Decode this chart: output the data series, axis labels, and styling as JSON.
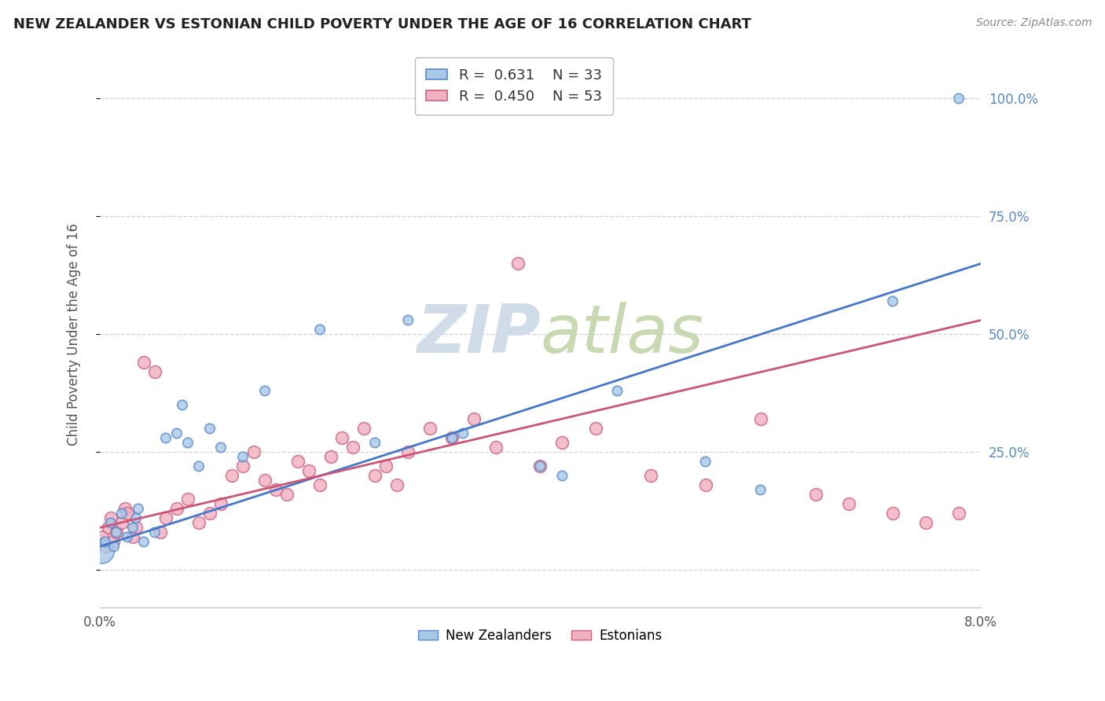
{
  "title": "NEW ZEALANDER VS ESTONIAN CHILD POVERTY UNDER THE AGE OF 16 CORRELATION CHART",
  "source": "Source: ZipAtlas.com",
  "ylabel": "Child Poverty Under the Age of 16",
  "ytick_vals": [
    0.0,
    0.25,
    0.5,
    0.75,
    1.0
  ],
  "ytick_labels": [
    "",
    "25.0%",
    "50.0%",
    "75.0%",
    "100.0%"
  ],
  "xmin": 0.0,
  "xmax": 0.08,
  "ymin": -0.08,
  "ymax": 1.08,
  "nz_fill_color": "#a8c8e8",
  "nz_edge_color": "#5588cc",
  "est_fill_color": "#f0b0c0",
  "est_edge_color": "#d06080",
  "nz_line_color": "#4477cc",
  "est_line_color": "#cc5577",
  "right_tick_color": "#5588cc",
  "watermark_color": "#d0dde8",
  "legend_nz_r": "0.631",
  "legend_nz_n": "33",
  "legend_est_r": "0.450",
  "legend_est_n": "53",
  "nz_x": [
    0.0002,
    0.0005,
    0.001,
    0.0013,
    0.0015,
    0.002,
    0.0025,
    0.003,
    0.0033,
    0.0035,
    0.004,
    0.005,
    0.006,
    0.007,
    0.0075,
    0.008,
    0.009,
    0.01,
    0.011,
    0.013,
    0.015,
    0.02,
    0.025,
    0.028,
    0.032,
    0.033,
    0.04,
    0.042,
    0.047,
    0.055,
    0.06,
    0.072,
    0.078
  ],
  "nz_y": [
    0.04,
    0.06,
    0.1,
    0.05,
    0.08,
    0.12,
    0.07,
    0.09,
    0.11,
    0.13,
    0.06,
    0.08,
    0.28,
    0.29,
    0.35,
    0.27,
    0.22,
    0.3,
    0.26,
    0.24,
    0.38,
    0.51,
    0.27,
    0.53,
    0.28,
    0.29,
    0.22,
    0.2,
    0.38,
    0.23,
    0.17,
    0.57,
    1.0
  ],
  "nz_s": [
    500,
    80,
    80,
    80,
    80,
    80,
    80,
    80,
    80,
    80,
    80,
    80,
    80,
    80,
    80,
    80,
    80,
    80,
    80,
    80,
    80,
    80,
    80,
    80,
    80,
    80,
    80,
    80,
    80,
    80,
    80,
    80,
    80
  ],
  "est_x": [
    0.0002,
    0.0005,
    0.0008,
    0.001,
    0.0012,
    0.0015,
    0.002,
    0.0023,
    0.0025,
    0.003,
    0.0033,
    0.004,
    0.005,
    0.0055,
    0.006,
    0.007,
    0.008,
    0.009,
    0.01,
    0.011,
    0.012,
    0.013,
    0.014,
    0.015,
    0.016,
    0.017,
    0.018,
    0.019,
    0.02,
    0.021,
    0.022,
    0.023,
    0.024,
    0.025,
    0.026,
    0.027,
    0.028,
    0.03,
    0.032,
    0.034,
    0.036,
    0.038,
    0.04,
    0.042,
    0.045,
    0.05,
    0.055,
    0.06,
    0.065,
    0.068,
    0.072,
    0.075,
    0.078
  ],
  "est_y": [
    0.07,
    0.05,
    0.09,
    0.11,
    0.06,
    0.08,
    0.1,
    0.13,
    0.12,
    0.07,
    0.09,
    0.44,
    0.42,
    0.08,
    0.11,
    0.13,
    0.15,
    0.1,
    0.12,
    0.14,
    0.2,
    0.22,
    0.25,
    0.19,
    0.17,
    0.16,
    0.23,
    0.21,
    0.18,
    0.24,
    0.28,
    0.26,
    0.3,
    0.2,
    0.22,
    0.18,
    0.25,
    0.3,
    0.28,
    0.32,
    0.26,
    0.65,
    0.22,
    0.27,
    0.3,
    0.2,
    0.18,
    0.32,
    0.16,
    0.14,
    0.12,
    0.1,
    0.12
  ],
  "background_color": "#ffffff",
  "grid_color": "#cccccc"
}
